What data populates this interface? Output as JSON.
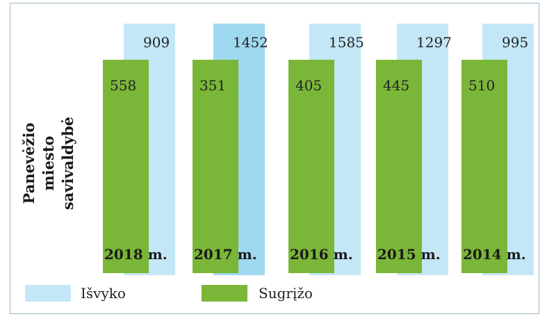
{
  "chart_data": {
    "type": "bar",
    "ylabel": "Panevėžio miesto savivaldybė",
    "categories": [
      "2018 m.",
      "2017 m.",
      "2016 m.",
      "2015 m.",
      "2014 m."
    ],
    "series": [
      {
        "name": "Išvyko",
        "values": [
          909,
          1452,
          1585,
          1297,
          995
        ],
        "color": "#c3e7f7"
      },
      {
        "name": "Sugrįžo",
        "values": [
          558,
          351,
          405,
          445,
          510
        ],
        "color": "#7ab637"
      }
    ],
    "highlight_color": "#9fd9ef",
    "highlight_index": 1,
    "legend": "bottom",
    "grid": false
  }
}
